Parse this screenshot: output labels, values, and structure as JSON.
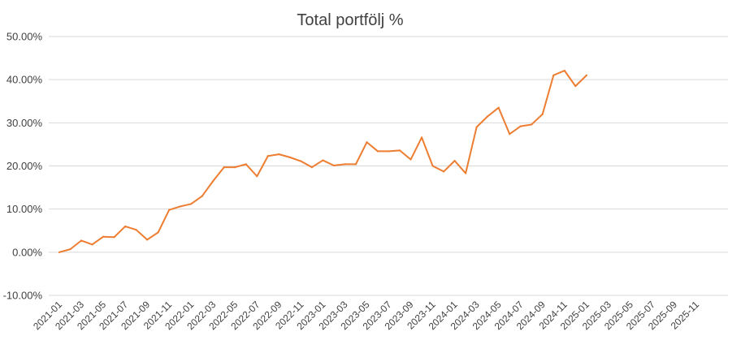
{
  "chart_data": {
    "type": "line",
    "title": "Total portfölj %",
    "xlabel": "",
    "ylabel": "",
    "ylim": [
      -0.1,
      0.5
    ],
    "yticks": [
      "-10.00%",
      "0.00%",
      "10.00%",
      "20.00%",
      "30.00%",
      "40.00%",
      "50.00%"
    ],
    "x_tick_labels": [
      "2021-01",
      "2021-03",
      "2021-05",
      "2021-07",
      "2021-09",
      "2021-11",
      "2022-01",
      "2022-03",
      "2022-05",
      "2022-07",
      "2022-09",
      "2022-11",
      "2023-01",
      "2023-03",
      "2023-05",
      "2023-07",
      "2023-09",
      "2023-11",
      "2024-01",
      "2024-03",
      "2024-05",
      "2024-07",
      "2024-09",
      "2024-11",
      "2025-01",
      "2025-03",
      "2025-05",
      "2025-07",
      "2025-09",
      "2025-11"
    ],
    "x_axis_months": 60,
    "grid": true,
    "line_color": "#ED7D31",
    "series": [
      {
        "name": "",
        "values": [
          0.0,
          0.007,
          0.027,
          0.018,
          0.036,
          0.035,
          0.06,
          0.052,
          0.029,
          0.046,
          0.098,
          0.106,
          0.112,
          0.13,
          0.165,
          0.197,
          0.197,
          0.204,
          0.176,
          0.223,
          0.227,
          0.22,
          0.211,
          0.197,
          0.213,
          0.201,
          0.204,
          0.204,
          0.255,
          0.234,
          0.234,
          0.236,
          0.215,
          0.266,
          0.2,
          0.187,
          0.212,
          0.183,
          0.29,
          0.315,
          0.335,
          0.274,
          0.292,
          0.296,
          0.32,
          0.41,
          0.421,
          0.385,
          0.41
        ]
      }
    ]
  }
}
